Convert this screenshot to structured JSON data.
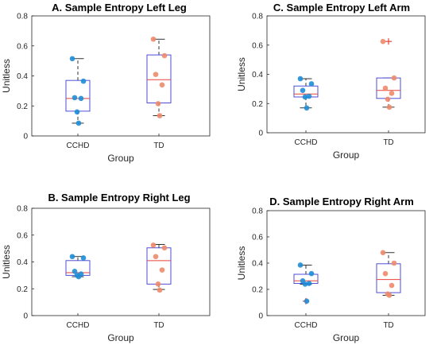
{
  "chart_data": [
    {
      "type": "box",
      "title": "A. Sample Entropy Left Leg",
      "xlabel": "Group",
      "ylabel": "Unitless",
      "ylim": [
        0,
        0.8
      ],
      "yticks": [
        0,
        0.2,
        0.4,
        0.6,
        0.8
      ],
      "categories": [
        "CCHD",
        "TD"
      ],
      "boxes": [
        {
          "name": "CCHD",
          "whisker_low": 0.085,
          "q1": 0.165,
          "median": 0.25,
          "q3": 0.37,
          "whisker_high": 0.515,
          "outliers": [],
          "points": [
            0.515,
            0.365,
            0.255,
            0.25,
            0.16,
            0.085
          ],
          "color": "#1f8dd6"
        },
        {
          "name": "TD",
          "whisker_low": 0.135,
          "q1": 0.22,
          "median": 0.375,
          "q3": 0.54,
          "whisker_high": 0.645,
          "outliers": [],
          "points": [
            0.645,
            0.535,
            0.41,
            0.34,
            0.215,
            0.135
          ],
          "color": "#f08a6c"
        }
      ]
    },
    {
      "type": "box",
      "title": "C. Sample Entropy Left Arm",
      "xlabel": "Group",
      "ylabel": "Unitless",
      "ylim": [
        0,
        0.8
      ],
      "yticks": [
        0,
        0.2,
        0.4,
        0.6,
        0.8
      ],
      "categories": [
        "CCHD",
        "TD"
      ],
      "boxes": [
        {
          "name": "CCHD",
          "whisker_low": 0.17,
          "q1": 0.245,
          "median": 0.265,
          "q3": 0.32,
          "whisker_high": 0.37,
          "outliers": [],
          "points": [
            0.37,
            0.335,
            0.29,
            0.25,
            0.245,
            0.17
          ],
          "color": "#1f8dd6"
        },
        {
          "name": "TD",
          "whisker_low": 0.175,
          "q1": 0.235,
          "median": 0.29,
          "q3": 0.375,
          "whisker_high": 0.375,
          "outliers": [
            0.625
          ],
          "points": [
            0.625,
            0.375,
            0.305,
            0.27,
            0.23,
            0.175
          ],
          "color": "#f08a6c"
        }
      ]
    },
    {
      "type": "box",
      "title": "B. Sample Entropy Right Leg",
      "xlabel": "Group",
      "ylabel": "Unitless",
      "ylim": [
        0,
        0.8
      ],
      "yticks": [
        0,
        0.2,
        0.4,
        0.6,
        0.8
      ],
      "categories": [
        "CCHD",
        "TD"
      ],
      "boxes": [
        {
          "name": "CCHD",
          "whisker_low": 0.29,
          "q1": 0.3,
          "median": 0.32,
          "q3": 0.41,
          "whisker_high": 0.44,
          "outliers": [],
          "points": [
            0.44,
            0.43,
            0.33,
            0.31,
            0.3,
            0.29
          ],
          "color": "#1f8dd6"
        },
        {
          "name": "TD",
          "whisker_low": 0.195,
          "q1": 0.235,
          "median": 0.41,
          "q3": 0.505,
          "whisker_high": 0.53,
          "outliers": [],
          "points": [
            0.525,
            0.505,
            0.44,
            0.34,
            0.235,
            0.19
          ],
          "color": "#f08a6c"
        }
      ]
    },
    {
      "type": "box",
      "title": "D. Sample Entropy Right Arm",
      "xlabel": "Group",
      "ylabel": "Unitless",
      "ylim": [
        0,
        0.8
      ],
      "yticks": [
        0,
        0.2,
        0.4,
        0.6,
        0.8
      ],
      "categories": [
        "CCHD",
        "TD"
      ],
      "boxes": [
        {
          "name": "CCHD",
          "whisker_low": 0.24,
          "q1": 0.245,
          "median": 0.265,
          "q3": 0.315,
          "whisker_high": 0.385,
          "outliers": [
            0.11
          ],
          "points": [
            0.385,
            0.32,
            0.265,
            0.245,
            0.24,
            0.11
          ],
          "color": "#1f8dd6"
        },
        {
          "name": "TD",
          "whisker_low": 0.155,
          "q1": 0.175,
          "median": 0.275,
          "q3": 0.395,
          "whisker_high": 0.48,
          "outliers": [],
          "points": [
            0.48,
            0.4,
            0.32,
            0.23,
            0.165,
            0.155
          ],
          "color": "#f08a6c"
        }
      ]
    }
  ],
  "colors": {
    "box_edge": "#3b3bd6",
    "median": "#e8423a",
    "whisker": "#000000",
    "outlier": "#e8423a",
    "axis": "#262626"
  }
}
